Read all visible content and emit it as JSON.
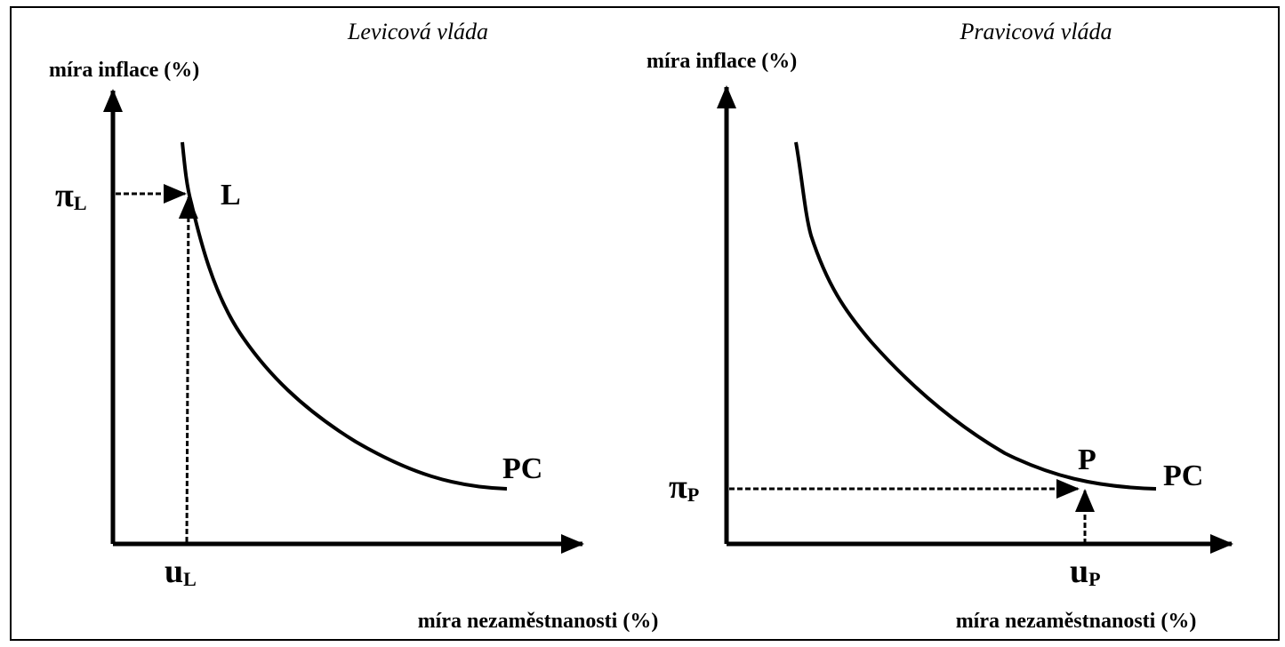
{
  "panels": [
    {
      "title": "Levicová vláda",
      "y_axis_label": "míra inflace (%)",
      "x_axis_label": "míra nezaměstnanosti (%)",
      "point_label": "L",
      "curve_label": "PC",
      "pi_label": {
        "symbol": "π",
        "subscript": "L"
      },
      "u_label": {
        "symbol": "u",
        "subscript": "L"
      }
    },
    {
      "title": "Pravicová vláda",
      "y_axis_label": "míra inflace (%)",
      "x_axis_label": "míra nezaměstnanosti (%)",
      "point_label": "P",
      "curve_label": "PC",
      "pi_label": {
        "symbol": "π",
        "subscript": "P"
      },
      "u_label": {
        "symbol": "u",
        "subscript": "P"
      }
    }
  ]
}
